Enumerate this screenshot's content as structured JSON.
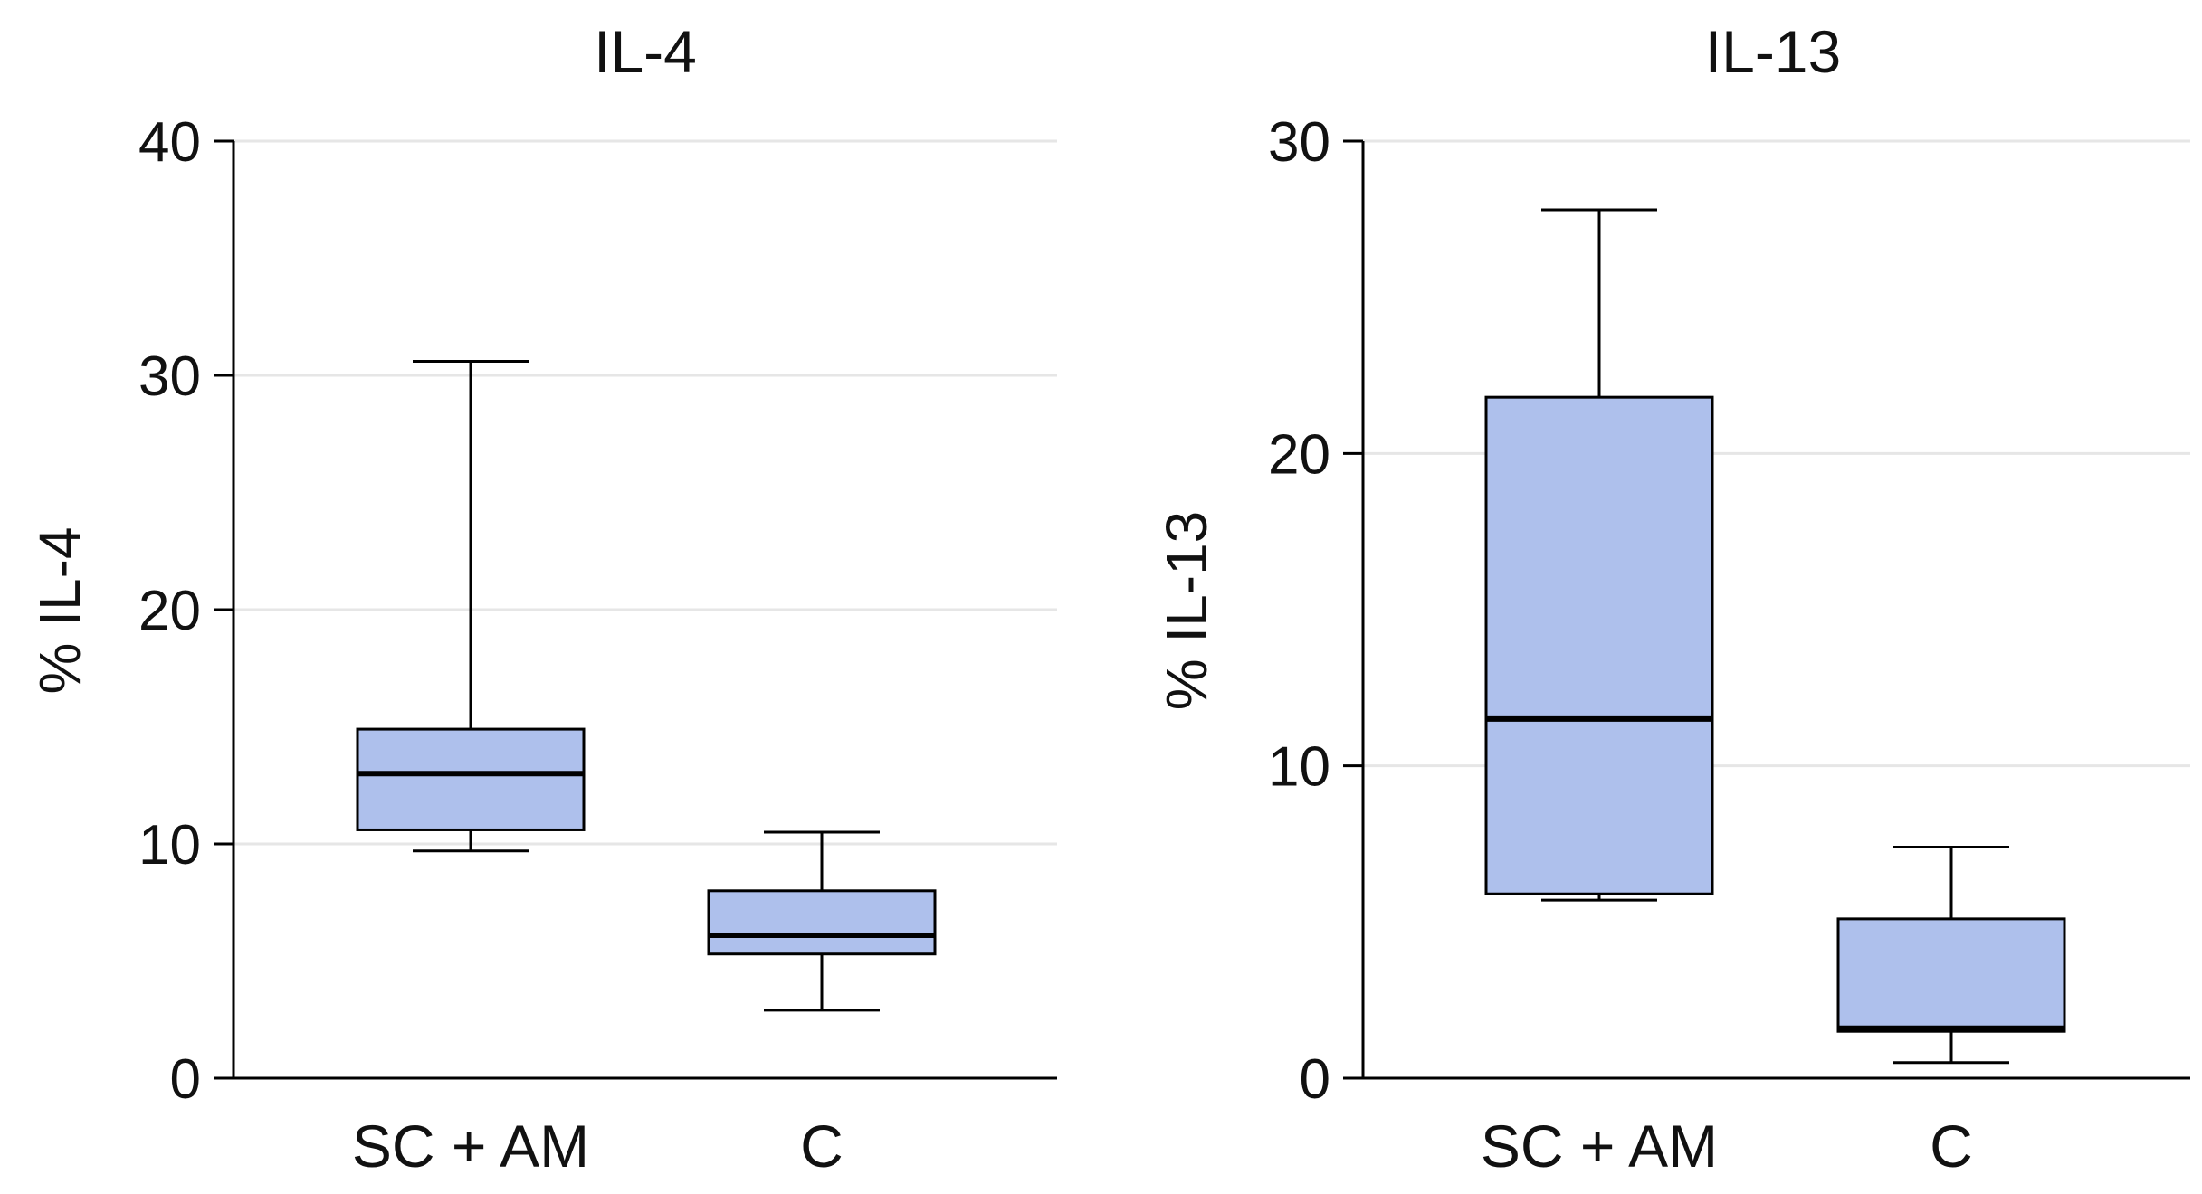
{
  "colors": {
    "box_fill": "#aec0ec",
    "stroke": "#000000",
    "grid": "#e6e6e6",
    "background": "#ffffff"
  },
  "chart_data": [
    {
      "type": "box",
      "title": "IL-4",
      "xlabel": "",
      "ylabel": "% IL-4",
      "ylim": [
        0,
        40
      ],
      "yticks": [
        0,
        10,
        20,
        30,
        40
      ],
      "grid": true,
      "categories": [
        "SC + AM",
        "C"
      ],
      "boxes": [
        {
          "name": "SC + AM",
          "min": 9.7,
          "q1": 10.6,
          "median": 13.0,
          "q3": 14.9,
          "max": 30.6
        },
        {
          "name": "C",
          "min": 2.9,
          "q1": 5.3,
          "median": 6.1,
          "q3": 8.0,
          "max": 10.5
        }
      ]
    },
    {
      "type": "box",
      "title": "IL-13",
      "xlabel": "",
      "ylabel": "% IL-13",
      "ylim": [
        0,
        30
      ],
      "yticks": [
        0,
        10,
        20,
        30
      ],
      "grid": true,
      "categories": [
        "SC + AM",
        "C"
      ],
      "boxes": [
        {
          "name": "SC + AM",
          "min": 5.7,
          "q1": 5.9,
          "median": 11.5,
          "q3": 21.8,
          "max": 27.8
        },
        {
          "name": "C",
          "min": 0.5,
          "q1": 1.5,
          "median": 1.6,
          "q3": 5.1,
          "max": 7.4
        }
      ]
    }
  ]
}
